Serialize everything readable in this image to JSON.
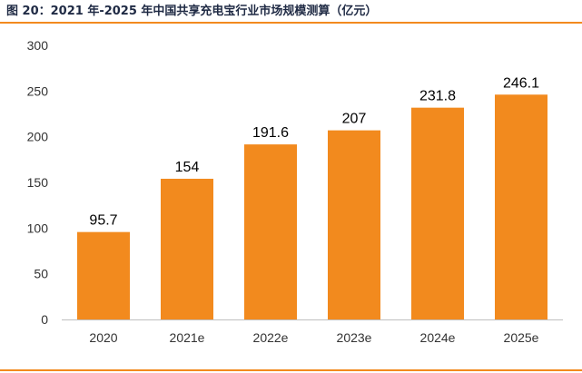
{
  "figure": {
    "title": "图 20：2021 年-2025 年中国共享充电宝行业市场规模测算（亿元）"
  },
  "colors": {
    "bar": "#f28a1e",
    "rule": "#f28a1e",
    "title": "#1f2a44",
    "axis": "#bfbfbf",
    "text": "#333333"
  },
  "chart_data": {
    "type": "bar",
    "title": "图 20：2021 年-2025 年中国共享充电宝行业市场规模测算（亿元）",
    "xlabel": "",
    "ylabel": "",
    "categories": [
      "2020",
      "2021e",
      "2022e",
      "2023e",
      "2024e",
      "2025e"
    ],
    "values": [
      95.7,
      154,
      191.6,
      207,
      231.8,
      246.1
    ],
    "data_labels": [
      "95.7",
      "154",
      "191.6",
      "207",
      "231.8",
      "246.1"
    ],
    "ylim": [
      0,
      300
    ],
    "yticks": [
      0,
      50,
      100,
      150,
      200,
      250,
      300
    ],
    "grid": false,
    "legend": "none"
  }
}
